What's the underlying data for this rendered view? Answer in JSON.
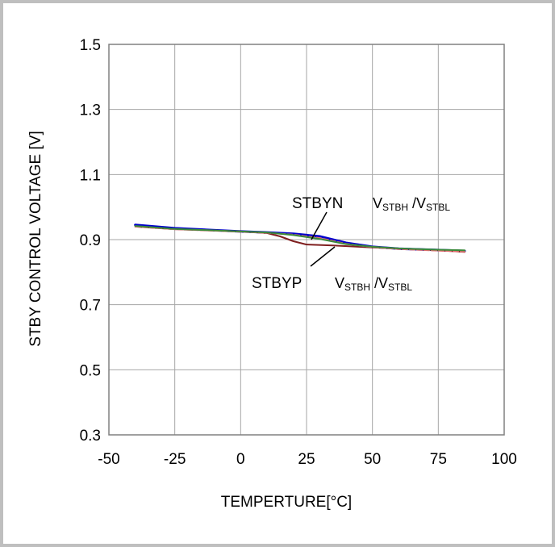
{
  "chart_data": {
    "type": "line",
    "title": "",
    "xlabel": "TEMPERTURE[°C]",
    "ylabel": "STBY CONTROL VOLTAGE [V]",
    "xlim": [
      -50,
      100
    ],
    "ylim": [
      0.3,
      1.5
    ],
    "xticks": [
      -50,
      -25,
      0,
      25,
      50,
      75,
      100
    ],
    "yticks": [
      0.3,
      0.5,
      0.7,
      0.9,
      1.1,
      1.3,
      1.5
    ],
    "x_tick_labels": [
      "-50",
      "-25",
      "0",
      "25",
      "50",
      "75",
      "100"
    ],
    "y_tick_labels": [
      "0.3",
      "0.5",
      "0.7",
      "0.9",
      "1.1",
      "1.3",
      "1.5"
    ],
    "grid": true,
    "series": [
      {
        "color": "#0000cc",
        "x": [
          -40,
          -25,
          0,
          10,
          20,
          30,
          40,
          50,
          60,
          75,
          85
        ],
        "y": [
          0.945,
          0.935,
          0.925,
          0.922,
          0.918,
          0.91,
          0.89,
          0.878,
          0.872,
          0.868,
          0.865
        ]
      },
      {
        "color": "#7f1f1f",
        "x": [
          -40,
          -25,
          0,
          10,
          15,
          20,
          25,
          35,
          50,
          75,
          85
        ],
        "y": [
          0.94,
          0.932,
          0.925,
          0.92,
          0.91,
          0.895,
          0.885,
          0.882,
          0.876,
          0.867,
          0.862
        ]
      },
      {
        "color": "#e07070",
        "x": [
          -40,
          -25,
          0,
          10,
          20,
          30,
          40,
          50,
          60,
          75,
          85
        ],
        "y": [
          0.94,
          0.932,
          0.924,
          0.921,
          0.915,
          0.905,
          0.887,
          0.877,
          0.871,
          0.866,
          0.863
        ]
      },
      {
        "color": "#3a8a3a",
        "x": [
          -40,
          -25,
          0,
          10,
          20,
          30,
          40,
          50,
          60,
          75,
          85
        ],
        "y": [
          0.942,
          0.933,
          0.925,
          0.922,
          0.914,
          0.902,
          0.886,
          0.878,
          0.873,
          0.869,
          0.867
        ]
      }
    ],
    "annotations": [
      {
        "label": "STBYN",
        "v1": "V",
        "v1_sub": "STBH",
        "sep": " /V",
        "v2_sub": "STBL"
      },
      {
        "label": "STBYP",
        "v1": "V",
        "v1_sub": "STBH",
        "sep": " /V",
        "v2_sub": "STBL"
      }
    ]
  }
}
